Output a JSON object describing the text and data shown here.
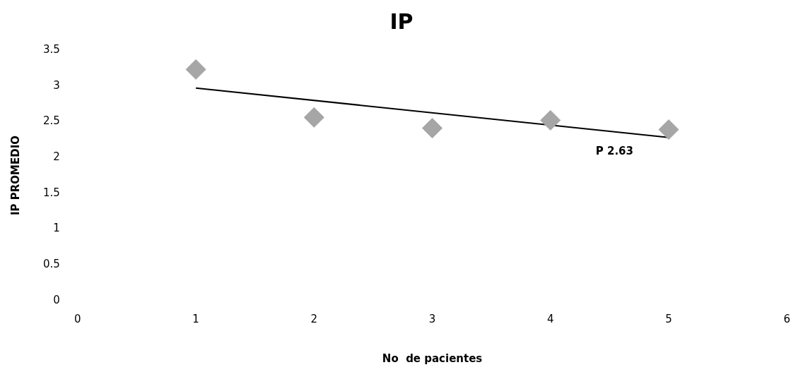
{
  "chart_data": {
    "type": "scatter",
    "title": "IP",
    "xlabel": "No  de pacientes",
    "ylabel": "IP PROMEDIO",
    "xlim": [
      0,
      6
    ],
    "xticks": [
      0,
      1,
      2,
      3,
      4,
      5,
      6
    ],
    "ylim": [
      0,
      3.5
    ],
    "yticks": [
      0,
      0.5,
      1,
      1.5,
      2,
      2.5,
      3,
      3.5
    ],
    "grid": false,
    "legend": false,
    "marker": "diamond",
    "series": [
      {
        "color": "#a6a6a6",
        "x": [
          1,
          2,
          3,
          4,
          5
        ],
        "values": [
          3.23,
          2.56,
          2.41,
          2.52,
          2.39
        ]
      },
      {
        "type": "line",
        "color": "#000000",
        "x": [
          1,
          5
        ],
        "values": [
          2.97,
          2.28
        ],
        "marker": "none",
        "line_style": "solid"
      }
    ],
    "annotations": [
      "P 2.63"
    ]
  }
}
